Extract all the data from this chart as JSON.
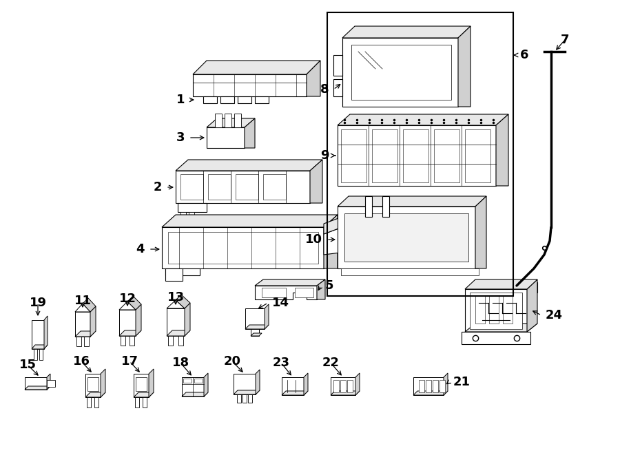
{
  "bg_color": "#ffffff",
  "line_color": "#000000",
  "fig_width": 9.0,
  "fig_height": 6.61,
  "lw": 0.8,
  "label_fs": 12,
  "gray1": "#e8e8e8",
  "gray2": "#d0d0d0",
  "gray3": "#b8b8b8"
}
